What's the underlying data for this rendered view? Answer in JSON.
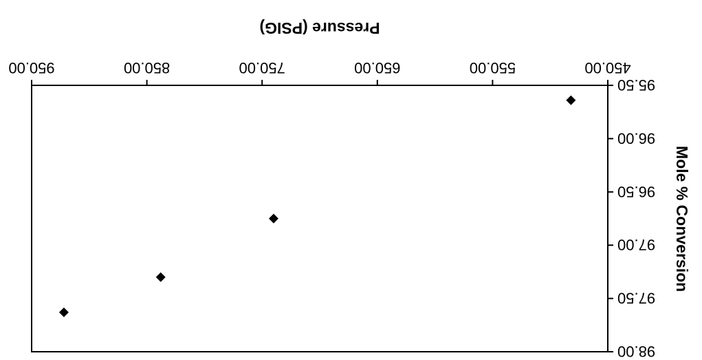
{
  "chart_data": {
    "type": "scatter",
    "title": "",
    "xlabel": "Pressure (PSIG)",
    "ylabel": "Mole % Conversion",
    "orientation": "rotated 180 degrees",
    "xlim": [
      450,
      950
    ],
    "ylim": [
      95.5,
      98.0
    ],
    "x_ticks": [
      "450.00",
      "550.00",
      "650.00",
      "750.00",
      "850.00",
      "950.00"
    ],
    "y_ticks": [
      "95.50",
      "96.00",
      "96.50",
      "97.00",
      "97.50",
      "98.00"
    ],
    "grid": false,
    "marker": "diamond",
    "marker_color": "#000000",
    "points": [
      {
        "x": 482,
        "y": 95.64
      },
      {
        "x": 740,
        "y": 96.75
      },
      {
        "x": 838,
        "y": 97.3
      },
      {
        "x": 922,
        "y": 97.63
      }
    ]
  }
}
